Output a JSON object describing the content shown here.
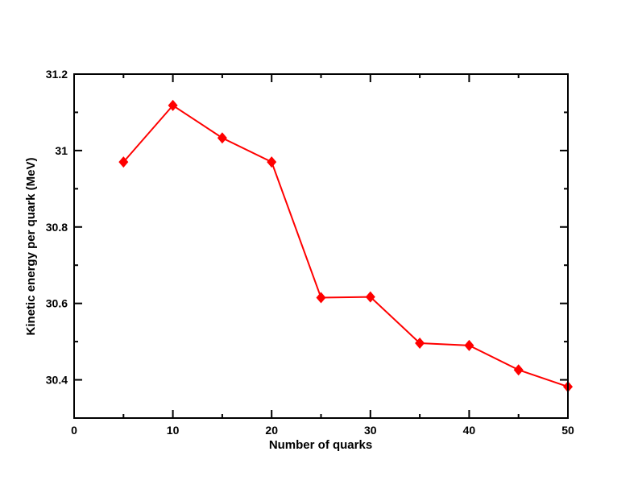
{
  "chart_data": {
    "type": "line",
    "title": "",
    "xlabel": "Number of quarks",
    "ylabel": "Kinetic energy per quark (MeV)",
    "xlim": [
      0,
      50
    ],
    "ylim": [
      30.3,
      31.2
    ],
    "xticks": [
      0,
      10,
      20,
      30,
      40,
      50
    ],
    "xtick_labels": [
      "0",
      "10",
      "20",
      "30",
      "40",
      "50"
    ],
    "yticks": [
      30.4,
      30.6,
      30.8,
      31.0,
      31.2
    ],
    "ytick_labels": [
      "30.4",
      "30.6",
      "30.8",
      "31",
      "31.2"
    ],
    "x_minor_step": 5,
    "y_minor_step": 0.1,
    "grid": false,
    "series": [
      {
        "name": "kinetic energy",
        "color": "#ff0000",
        "marker": "diamond",
        "x": [
          5,
          10,
          15,
          20,
          25,
          30,
          35,
          40,
          45,
          50
        ],
        "values": [
          30.97,
          31.118,
          31.033,
          30.97,
          30.615,
          30.617,
          30.496,
          30.49,
          30.426,
          30.382
        ]
      }
    ]
  }
}
